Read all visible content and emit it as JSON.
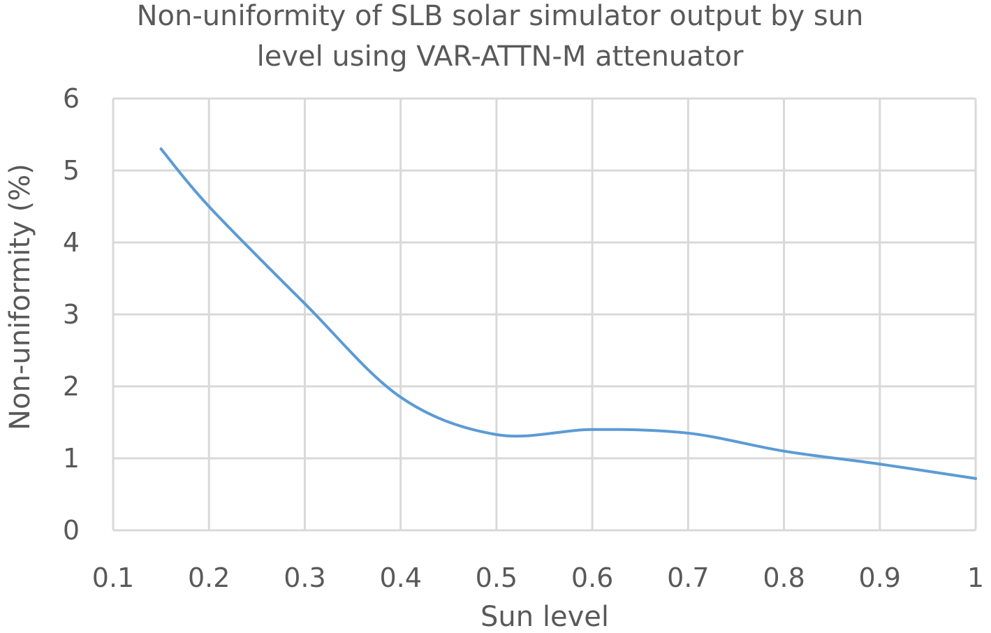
{
  "chart_data": {
    "type": "line",
    "title_lines": [
      "Non-uniformity of SLB solar simulator output by sun",
      "level using VAR-ATTN-M attenuator"
    ],
    "xlabel": "Sun level",
    "ylabel": "Non-uniformity (%)",
    "xlim": [
      0.1,
      1
    ],
    "ylim": [
      0,
      6
    ],
    "x_ticks": [
      0.1,
      0.2,
      0.3,
      0.4,
      0.5,
      0.6,
      0.7,
      0.8,
      0.9,
      1
    ],
    "x_tick_labels": [
      "0.1",
      "0.2",
      "0.3",
      "0.4",
      "0.5",
      "0.6",
      "0.7",
      "0.8",
      "0.9",
      "1"
    ],
    "y_ticks": [
      0,
      1,
      2,
      3,
      4,
      5,
      6
    ],
    "y_tick_labels": [
      "0",
      "1",
      "2",
      "3",
      "4",
      "5",
      "6"
    ],
    "grid": true,
    "legend": "none",
    "smooth": true,
    "series": [
      {
        "color": "#5b9bd5",
        "x": [
          0.15,
          0.2,
          0.3,
          0.4,
          0.5,
          0.6,
          0.7,
          0.8,
          0.9,
          1.0
        ],
        "y": [
          5.3,
          4.5,
          3.15,
          1.85,
          1.33,
          1.4,
          1.35,
          1.1,
          0.92,
          0.72
        ]
      }
    ]
  }
}
